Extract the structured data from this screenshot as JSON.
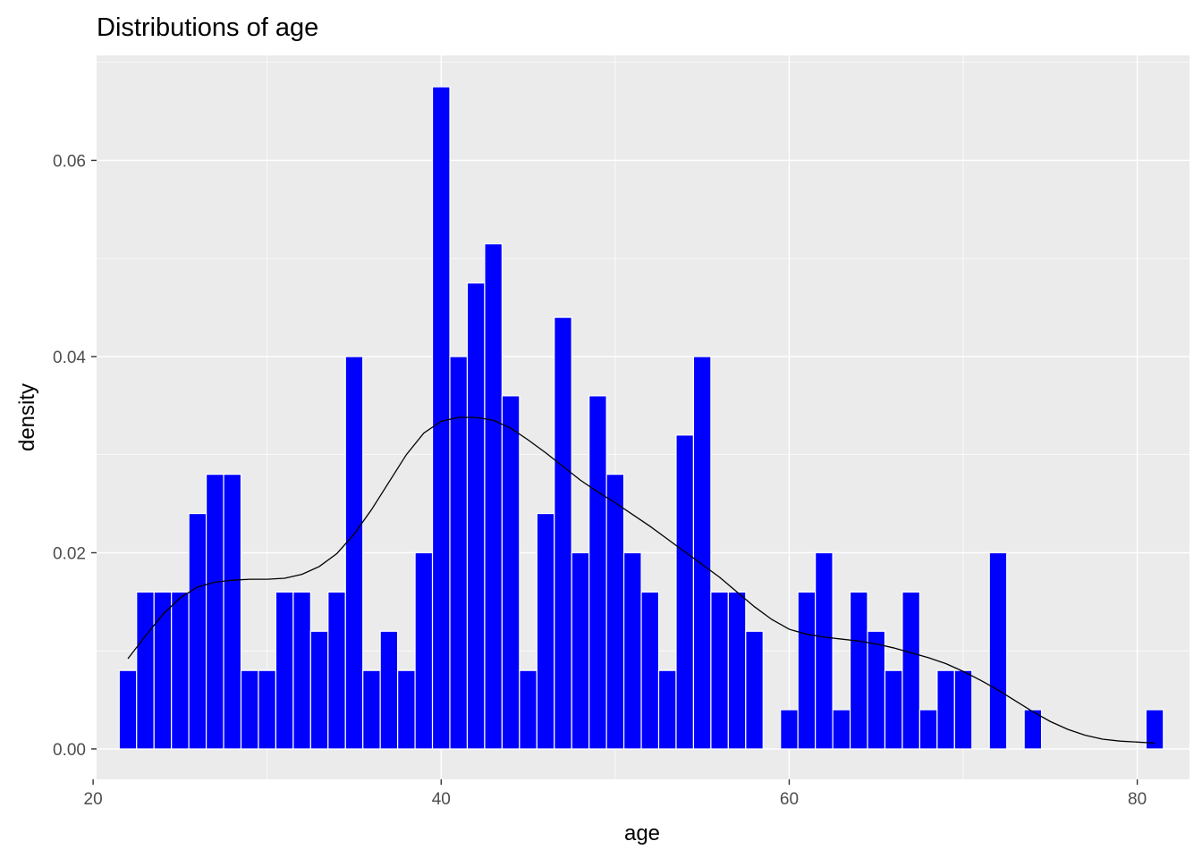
{
  "chart_data": {
    "type": "bar",
    "title": "Distributions of age",
    "xlabel": "age",
    "ylabel": "density",
    "xlim": [
      20.2,
      83.0
    ],
    "ylim": [
      -0.0031,
      0.0707
    ],
    "x_ticks": [
      20,
      40,
      60,
      80
    ],
    "x_tick_labels": [
      "20",
      "40",
      "60",
      "80"
    ],
    "y_ticks": [
      0.0,
      0.02,
      0.04,
      0.06
    ],
    "y_tick_labels": [
      "0.00",
      "0.02",
      "0.04",
      "0.06"
    ],
    "grid": true,
    "bin_width": 1,
    "bar_color": "#0000FF",
    "bar_outline": "#FFFFFF",
    "panel_background": "#EBEBEB",
    "line_color": "#000000",
    "histogram": {
      "x": [
        22,
        23,
        24,
        25,
        26,
        27,
        28,
        29,
        30,
        31,
        32,
        33,
        34,
        35,
        36,
        37,
        38,
        39,
        40,
        41,
        42,
        43,
        44,
        45,
        46,
        47,
        48,
        49,
        50,
        51,
        52,
        53,
        54,
        55,
        56,
        57,
        58,
        59,
        60,
        61,
        62,
        63,
        64,
        65,
        66,
        67,
        68,
        69,
        70,
        71,
        72,
        73,
        74,
        75,
        76,
        77,
        78,
        79,
        80,
        81
      ],
      "density": [
        0.008,
        0.016,
        0.016,
        0.016,
        0.024,
        0.028,
        0.028,
        0.008,
        0.008,
        0.016,
        0.016,
        0.012,
        0.016,
        0.04,
        0.008,
        0.012,
        0.008,
        0.02,
        0.0675,
        0.04,
        0.0475,
        0.0515,
        0.036,
        0.008,
        0.024,
        0.044,
        0.02,
        0.036,
        0.028,
        0.02,
        0.016,
        0.008,
        0.032,
        0.04,
        0.016,
        0.016,
        0.012,
        0,
        0.004,
        0.016,
        0.02,
        0.004,
        0.016,
        0.012,
        0.008,
        0.016,
        0.004,
        0.008,
        0.008,
        0,
        0.02,
        0,
        0.004,
        0,
        0,
        0,
        0,
        0,
        0,
        0.004
      ]
    },
    "density_curve": {
      "x": [
        22,
        23,
        24,
        25,
        26,
        27,
        28,
        29,
        30,
        31,
        32,
        33,
        34,
        35,
        36,
        37,
        38,
        39,
        40,
        41,
        42,
        43,
        44,
        45,
        46,
        47,
        48,
        49,
        50,
        51,
        52,
        53,
        54,
        55,
        56,
        57,
        58,
        59,
        60,
        61,
        62,
        63,
        64,
        65,
        66,
        67,
        68,
        69,
        70,
        71,
        72,
        73,
        74,
        75,
        76,
        77,
        78,
        79,
        80,
        81
      ],
      "density": [
        0.0092,
        0.0115,
        0.0137,
        0.0154,
        0.0165,
        0.017,
        0.0172,
        0.0173,
        0.0173,
        0.0174,
        0.0178,
        0.0186,
        0.0199,
        0.0219,
        0.0244,
        0.0272,
        0.03,
        0.0322,
        0.0334,
        0.0338,
        0.0338,
        0.0335,
        0.0327,
        0.0315,
        0.0302,
        0.0288,
        0.0274,
        0.0262,
        0.0251,
        0.0239,
        0.0227,
        0.0214,
        0.0201,
        0.0188,
        0.0175,
        0.016,
        0.0145,
        0.0132,
        0.0122,
        0.0117,
        0.0114,
        0.0112,
        0.011,
        0.0107,
        0.0103,
        0.0098,
        0.0093,
        0.0087,
        0.0079,
        0.007,
        0.006,
        0.0049,
        0.0038,
        0.0028,
        0.002,
        0.0014,
        0.001,
        0.0008,
        0.0007,
        0.0006
      ]
    }
  }
}
